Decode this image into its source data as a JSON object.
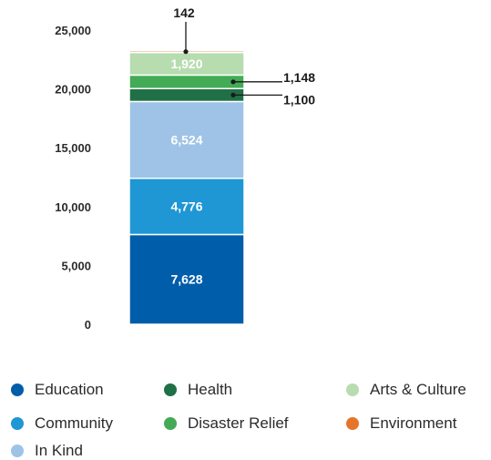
{
  "chart_data": {
    "type": "bar",
    "stacked": true,
    "categories": [
      ""
    ],
    "ylim": [
      0,
      25000
    ],
    "yticks": [
      "0",
      "5,000",
      "10,000",
      "15,000",
      "20,000",
      "25,000"
    ],
    "ytick_values": [
      0,
      5000,
      10000,
      15000,
      20000,
      25000
    ],
    "grid": false,
    "legend_position": "bottom",
    "series": [
      {
        "name": "Education",
        "values": [
          7628
        ],
        "label": "7,628",
        "color": "#005DAA"
      },
      {
        "name": "Community",
        "values": [
          4776
        ],
        "label": "4,776",
        "color": "#1F97D4"
      },
      {
        "name": "In Kind",
        "values": [
          6524
        ],
        "label": "6,524",
        "color": "#9EC3E6"
      },
      {
        "name": "Health",
        "values": [
          1100
        ],
        "label": "1,100",
        "color": "#1F7046"
      },
      {
        "name": "Disaster Relief",
        "values": [
          1148
        ],
        "label": "1,148",
        "color": "#43AB55"
      },
      {
        "name": "Arts & Culture",
        "values": [
          1920
        ],
        "label": "1,920",
        "color": "#B6DCB0"
      },
      {
        "name": "Environment",
        "values": [
          142
        ],
        "label": "142",
        "color": "#E5752A"
      }
    ],
    "legend_order": [
      "Education",
      "Health",
      "Arts & Culture",
      "Community",
      "Disaster Relief",
      "Environment",
      "In Kind"
    ]
  }
}
